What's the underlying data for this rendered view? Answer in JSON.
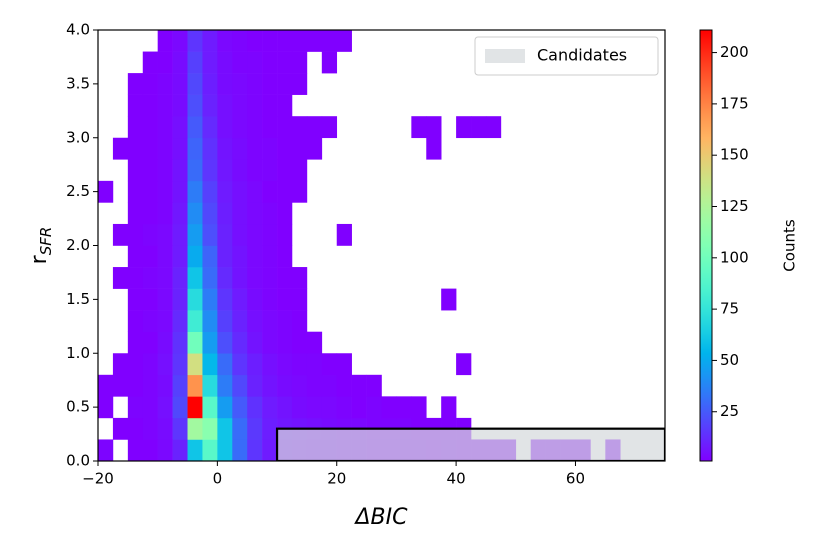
{
  "chart_data": {
    "type": "hist2d",
    "xlabel": "ΔBIC",
    "ylabel": [
      "r",
      "SFR"
    ],
    "xlim": [
      -20,
      75
    ],
    "ylim": [
      0,
      4
    ],
    "xticks": [
      {
        "value": -20,
        "label": "−20"
      },
      0,
      20,
      40,
      60
    ],
    "yticks": [
      {
        "value": 0,
        "label": "0.0"
      },
      {
        "value": 0.5,
        "label": "0.5"
      },
      {
        "value": 1,
        "label": "1.0"
      },
      {
        "value": 1.5,
        "label": "1.5"
      },
      {
        "value": 2,
        "label": "2.0"
      },
      {
        "value": 2.5,
        "label": "2.5"
      },
      {
        "value": 3,
        "label": "3.0"
      },
      {
        "value": 3.5,
        "label": "3.5"
      },
      {
        "value": 4,
        "label": "4.0"
      }
    ],
    "xbins": [
      -20,
      -17.5,
      -15,
      -12.5,
      -10,
      -7.5,
      -5,
      -2.5,
      0,
      2.5,
      5,
      7.5,
      10,
      12.5,
      15,
      17.5,
      20,
      22.5,
      25,
      27.5,
      30,
      32.5,
      35,
      37.5,
      40,
      42.5,
      45,
      47.5,
      50,
      52.5,
      55,
      57.5,
      60,
      62.5,
      65,
      67.5,
      70,
      72.5,
      75
    ],
    "ybins": [
      0,
      0.2,
      0.4,
      0.6,
      0.8,
      1,
      1.2,
      1.4,
      1.6,
      1.8,
      2,
      2.2,
      2.4,
      2.6,
      2.8,
      3,
      3.2,
      3.4,
      3.6,
      3.8,
      4
    ],
    "counts": [
      [
        2,
        0,
        1,
        1,
        3,
        10,
        60,
        90,
        60,
        30,
        15,
        8,
        6,
        5,
        4,
        4,
        3,
        3,
        2,
        2,
        2,
        2,
        1,
        2,
        1,
        1,
        1,
        1,
        0,
        1,
        1,
        1,
        1,
        0,
        1,
        0,
        0,
        0
      ],
      [
        0,
        1,
        1,
        2,
        4,
        15,
        120,
        110,
        60,
        30,
        16,
        9,
        7,
        6,
        5,
        4,
        3,
        3,
        2,
        2,
        2,
        1,
        1,
        1,
        1,
        0,
        0,
        0,
        0,
        0,
        0,
        0,
        0,
        0,
        0,
        0,
        0,
        0
      ],
      [
        1,
        0,
        2,
        2,
        5,
        20,
        211,
        90,
        45,
        25,
        14,
        8,
        6,
        4,
        3,
        3,
        2,
        1,
        2,
        1,
        1,
        1,
        0,
        1,
        0,
        0,
        0,
        0,
        0,
        0,
        0,
        0,
        0,
        0,
        0,
        0,
        0,
        0
      ],
      [
        1,
        1,
        1,
        2,
        4,
        18,
        170,
        70,
        35,
        20,
        10,
        6,
        4,
        3,
        2,
        2,
        1,
        1,
        1,
        0,
        0,
        0,
        0,
        0,
        0,
        0,
        0,
        0,
        0,
        0,
        0,
        0,
        0,
        0,
        0,
        0,
        0,
        0
      ],
      [
        0,
        1,
        1,
        2,
        5,
        15,
        140,
        55,
        30,
        15,
        9,
        5,
        3,
        2,
        2,
        1,
        1,
        0,
        0,
        0,
        0,
        0,
        0,
        0,
        1,
        0,
        0,
        0,
        0,
        0,
        0,
        0,
        0,
        0,
        0,
        0,
        0,
        0
      ],
      [
        0,
        0,
        1,
        1,
        4,
        14,
        100,
        45,
        22,
        12,
        6,
        3,
        2,
        1,
        1,
        0,
        0,
        0,
        0,
        0,
        0,
        0,
        0,
        0,
        0,
        0,
        0,
        0,
        0,
        0,
        0,
        0,
        0,
        0,
        0,
        0,
        0,
        0
      ],
      [
        0,
        0,
        1,
        2,
        3,
        12,
        80,
        40,
        18,
        10,
        5,
        3,
        2,
        1,
        0,
        0,
        0,
        0,
        0,
        0,
        0,
        0,
        0,
        0,
        0,
        0,
        0,
        0,
        0,
        0,
        0,
        0,
        0,
        0,
        0,
        0,
        0,
        0
      ],
      [
        0,
        0,
        1,
        1,
        3,
        10,
        70,
        35,
        15,
        8,
        4,
        2,
        1,
        1,
        0,
        0,
        0,
        0,
        0,
        0,
        0,
        0,
        0,
        1,
        0,
        0,
        0,
        0,
        0,
        0,
        0,
        0,
        0,
        0,
        0,
        0,
        0,
        0
      ],
      [
        0,
        1,
        1,
        2,
        3,
        10,
        60,
        30,
        12,
        6,
        3,
        2,
        1,
        1,
        0,
        0,
        0,
        0,
        0,
        0,
        0,
        0,
        0,
        0,
        0,
        0,
        0,
        0,
        0,
        0,
        0,
        0,
        0,
        0,
        0,
        0,
        0,
        0
      ],
      [
        0,
        0,
        1,
        1,
        3,
        8,
        50,
        28,
        10,
        6,
        3,
        2,
        1,
        0,
        0,
        0,
        0,
        0,
        0,
        0,
        0,
        0,
        0,
        0,
        0,
        0,
        0,
        0,
        0,
        0,
        0,
        0,
        0,
        0,
        0,
        0,
        0,
        0
      ],
      [
        0,
        1,
        1,
        2,
        3,
        8,
        45,
        22,
        10,
        5,
        3,
        2,
        1,
        0,
        0,
        0,
        1,
        0,
        0,
        0,
        0,
        0,
        0,
        0,
        0,
        0,
        0,
        0,
        0,
        0,
        0,
        0,
        0,
        0,
        0,
        0,
        0,
        0
      ],
      [
        0,
        0,
        1,
        1,
        2,
        7,
        40,
        20,
        9,
        5,
        3,
        2,
        1,
        0,
        0,
        0,
        0,
        0,
        0,
        0,
        0,
        0,
        0,
        0,
        0,
        0,
        0,
        0,
        0,
        0,
        0,
        0,
        0,
        0,
        0,
        0,
        0,
        0
      ],
      [
        1,
        0,
        1,
        1,
        2,
        6,
        35,
        18,
        8,
        5,
        3,
        1,
        1,
        1,
        0,
        0,
        0,
        0,
        0,
        0,
        0,
        0,
        0,
        0,
        0,
        0,
        0,
        0,
        0,
        0,
        0,
        0,
        0,
        0,
        0,
        0,
        0,
        0
      ],
      [
        0,
        0,
        1,
        1,
        2,
        6,
        30,
        15,
        7,
        4,
        2,
        2,
        1,
        1,
        0,
        0,
        0,
        0,
        0,
        0,
        0,
        0,
        0,
        0,
        0,
        0,
        0,
        0,
        0,
        0,
        0,
        0,
        0,
        0,
        0,
        0,
        0,
        0
      ],
      [
        0,
        1,
        1,
        1,
        2,
        5,
        28,
        14,
        6,
        4,
        2,
        2,
        1,
        1,
        1,
        0,
        0,
        0,
        0,
        0,
        0,
        0,
        1,
        0,
        0,
        0,
        0,
        0,
        0,
        0,
        0,
        0,
        0,
        0,
        0,
        0,
        0,
        0
      ],
      [
        0,
        0,
        1,
        1,
        2,
        5,
        25,
        12,
        5,
        3,
        2,
        1,
        1,
        1,
        1,
        1,
        0,
        0,
        0,
        0,
        0,
        1,
        1,
        0,
        1,
        1,
        1,
        0,
        0,
        0,
        0,
        0,
        0,
        0,
        0,
        0,
        0,
        0
      ],
      [
        0,
        0,
        1,
        1,
        2,
        4,
        22,
        10,
        5,
        3,
        2,
        1,
        1,
        0,
        0,
        0,
        0,
        0,
        0,
        0,
        0,
        0,
        0,
        0,
        0,
        0,
        0,
        0,
        0,
        0,
        0,
        0,
        0,
        0,
        0,
        0,
        0,
        0
      ],
      [
        0,
        0,
        1,
        1,
        2,
        4,
        20,
        9,
        4,
        3,
        2,
        1,
        1,
        1,
        0,
        0,
        0,
        0,
        0,
        0,
        0,
        0,
        0,
        0,
        0,
        0,
        0,
        0,
        0,
        0,
        0,
        0,
        0,
        0,
        0,
        0,
        0,
        0
      ],
      [
        0,
        0,
        0,
        1,
        1,
        4,
        18,
        8,
        4,
        2,
        2,
        1,
        1,
        1,
        0,
        1,
        0,
        0,
        0,
        0,
        0,
        0,
        0,
        0,
        0,
        0,
        0,
        0,
        0,
        0,
        0,
        0,
        0,
        0,
        0,
        0,
        0,
        0
      ],
      [
        0,
        0,
        0,
        0,
        1,
        3,
        15,
        8,
        3,
        2,
        1,
        1,
        1,
        1,
        1,
        1,
        1,
        0,
        0,
        0,
        0,
        0,
        0,
        0,
        0,
        0,
        0,
        0,
        0,
        0,
        0,
        0,
        0,
        0,
        0,
        0,
        0,
        0
      ]
    ],
    "colormap": "rainbow",
    "clim": [
      1,
      211
    ],
    "colorbar_label": "Counts",
    "colorbar_ticks": [
      25,
      50,
      75,
      100,
      125,
      150,
      175,
      200
    ],
    "region": {
      "label": "Candidates",
      "x": [
        10,
        75
      ],
      "y": [
        0,
        0.3
      ],
      "color": "#d5d9dc"
    },
    "legend": "upper right"
  }
}
